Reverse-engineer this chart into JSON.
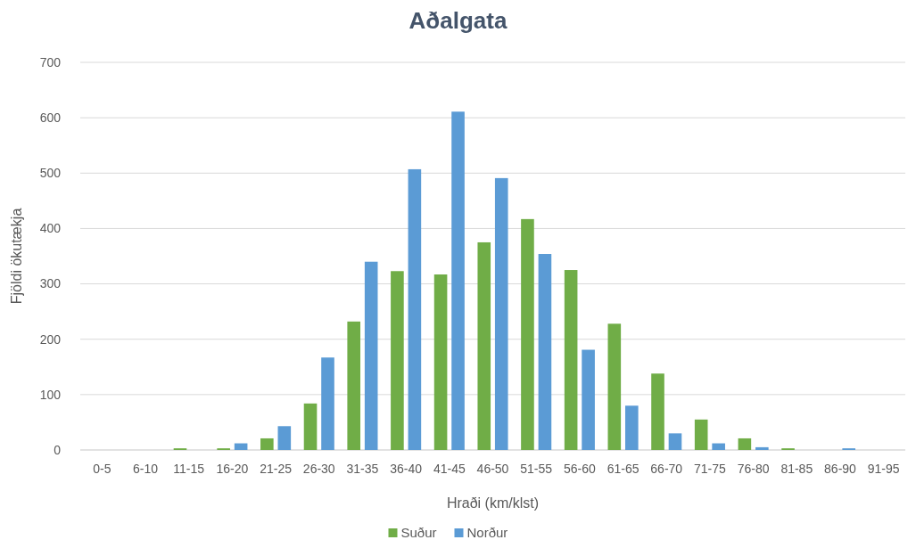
{
  "chart_data": {
    "type": "bar",
    "title": "Aðalgata",
    "xlabel": "Hraði (km/klst)",
    "ylabel": "Fjöldi ökutækja",
    "categories": [
      "0-5",
      "6-10",
      "11-15",
      "16-20",
      "21-25",
      "26-30",
      "31-35",
      "36-40",
      "41-45",
      "46-50",
      "51-55",
      "56-60",
      "61-65",
      "66-70",
      "71-75",
      "76-80",
      "81-85",
      "86-90",
      "91-95"
    ],
    "series": [
      {
        "name": "Suður",
        "color": "#70ad47",
        "values": [
          0,
          0,
          3,
          3,
          21,
          84,
          232,
          323,
          317,
          375,
          417,
          325,
          228,
          138,
          55,
          21,
          3,
          0,
          0
        ]
      },
      {
        "name": "Norður",
        "color": "#5b9bd5",
        "values": [
          0,
          0,
          0,
          12,
          43,
          167,
          340,
          507,
          611,
          491,
          354,
          181,
          80,
          30,
          12,
          5,
          0,
          3,
          0
        ]
      }
    ],
    "ylim": [
      0,
      700
    ],
    "yticks": [
      0,
      100,
      200,
      300,
      400,
      500,
      600,
      700
    ],
    "grid": "y",
    "legend": "bottom"
  }
}
